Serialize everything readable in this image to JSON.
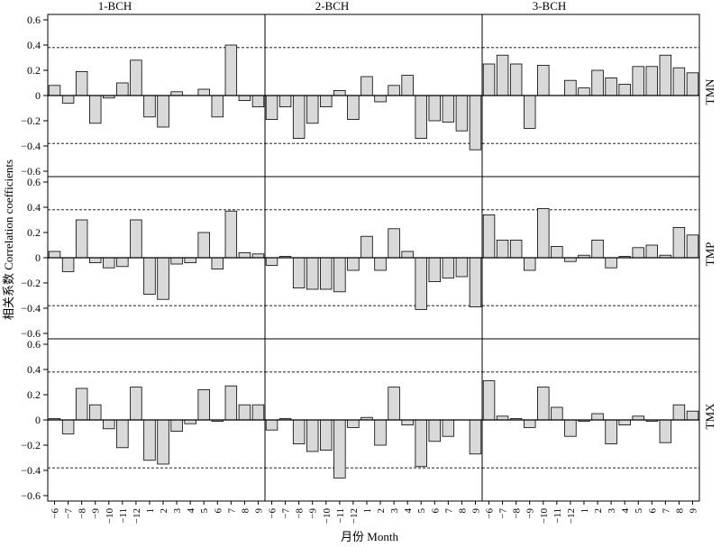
{
  "chart_data": {
    "type": "bar",
    "y_axis_label": "相关系数  Correlation coefficients",
    "x_axis_label": "月份 Month",
    "ylim": [
      -0.6,
      0.6
    ],
    "yticks": [
      "0.6",
      "0.4",
      "0.2",
      "0",
      "−0.2",
      "−0.4",
      "−0.6"
    ],
    "ytick_values": [
      0.6,
      0.4,
      0.2,
      0,
      -0.2,
      -0.4,
      -0.6
    ],
    "significance_lines": [
      0.38,
      -0.38
    ],
    "categories": [
      "−6",
      "−7",
      "−8",
      "−9",
      "−10",
      "−11",
      "−12",
      "1",
      "2",
      "3",
      "4",
      "5",
      "6",
      "7",
      "8",
      "9"
    ],
    "columns": [
      "1-BCH",
      "2-BCH",
      "3-BCH"
    ],
    "rows": [
      "TMN",
      "TMP",
      "TMX"
    ],
    "panels": [
      {
        "row": "TMN",
        "column": "1-BCH",
        "values": [
          0.08,
          -0.06,
          0.19,
          -0.22,
          -0.02,
          0.1,
          0.28,
          -0.17,
          -0.25,
          0.03,
          0.0,
          0.05,
          -0.17,
          0.4,
          -0.04,
          -0.09
        ]
      },
      {
        "row": "TMN",
        "column": "2-BCH",
        "values": [
          -0.19,
          -0.09,
          -0.34,
          -0.22,
          -0.09,
          0.04,
          -0.19,
          0.15,
          -0.05,
          0.08,
          0.16,
          -0.34,
          -0.2,
          -0.21,
          -0.28,
          -0.43
        ]
      },
      {
        "row": "TMN",
        "column": "3-BCH",
        "values": [
          0.25,
          0.32,
          0.25,
          -0.26,
          0.24,
          0.0,
          0.12,
          0.06,
          0.2,
          0.14,
          0.09,
          0.23,
          0.23,
          0.32,
          0.22,
          0.18
        ]
      },
      {
        "row": "TMP",
        "column": "1-BCH",
        "values": [
          0.05,
          -0.11,
          0.3,
          -0.04,
          -0.08,
          -0.07,
          0.3,
          -0.29,
          -0.33,
          -0.05,
          -0.04,
          0.2,
          -0.09,
          0.37,
          0.04,
          0.03
        ]
      },
      {
        "row": "TMP",
        "column": "2-BCH",
        "values": [
          -0.06,
          0.01,
          -0.24,
          -0.25,
          -0.25,
          -0.27,
          -0.1,
          0.17,
          -0.1,
          0.23,
          0.05,
          -0.41,
          -0.19,
          -0.16,
          -0.15,
          -0.39
        ]
      },
      {
        "row": "TMP",
        "column": "3-BCH",
        "values": [
          0.34,
          0.14,
          0.14,
          -0.1,
          0.39,
          0.09,
          -0.03,
          0.02,
          0.14,
          -0.08,
          0.01,
          0.08,
          0.1,
          0.02,
          0.24,
          0.18
        ]
      },
      {
        "row": "TMX",
        "column": "1-BCH",
        "values": [
          0.01,
          -0.11,
          0.25,
          0.12,
          -0.07,
          -0.22,
          0.26,
          -0.32,
          -0.35,
          -0.09,
          -0.03,
          0.24,
          -0.01,
          0.27,
          0.12,
          0.12
        ]
      },
      {
        "row": "TMX",
        "column": "2-BCH",
        "values": [
          -0.08,
          0.01,
          -0.19,
          -0.25,
          -0.24,
          -0.46,
          -0.06,
          0.02,
          -0.2,
          0.26,
          -0.04,
          -0.37,
          -0.17,
          -0.13,
          0.0,
          -0.27
        ]
      },
      {
        "row": "TMX",
        "column": "3-BCH",
        "values": [
          0.31,
          0.03,
          0.01,
          -0.06,
          0.26,
          0.1,
          -0.13,
          -0.01,
          0.05,
          -0.19,
          -0.04,
          0.03,
          -0.01,
          -0.18,
          0.12,
          0.07
        ]
      }
    ],
    "colors": {
      "bar_fill": "#d9d9d9",
      "bar_stroke": "#000000",
      "reference_line": "#000000"
    },
    "grid": false
  }
}
